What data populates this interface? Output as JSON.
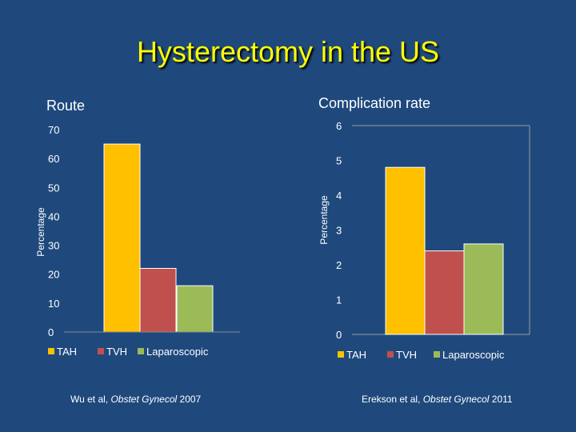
{
  "slide": {
    "title": "Hysterectomy in the US"
  },
  "chart_data": [
    {
      "type": "bar",
      "title": "Route",
      "xlabel": "",
      "ylabel": "Percentage",
      "ylim": [
        0,
        70
      ],
      "yticks": [
        0,
        10,
        20,
        30,
        40,
        50,
        60,
        70
      ],
      "grid": false,
      "legend": "bottom",
      "categories": [
        "TAH",
        "TVH",
        "Laparoscopic"
      ],
      "values": [
        65,
        22,
        16
      ],
      "colors": [
        "#ffc000",
        "#c0504d",
        "#9bbb59"
      ],
      "citation": {
        "authors": "Wu et al, ",
        "journal": "Obstet Gynecol",
        "year": " 2007"
      }
    },
    {
      "type": "bar",
      "title": "Complication rate",
      "xlabel": "",
      "ylabel": "Percentage",
      "ylim": [
        0,
        6
      ],
      "yticks": [
        0,
        1,
        2,
        3,
        4,
        5,
        6
      ],
      "grid": false,
      "legend": "bottom",
      "categories": [
        "TAH",
        "TVH",
        "Laparoscopic"
      ],
      "values": [
        4.8,
        2.4,
        2.6
      ],
      "colors": [
        "#ffc000",
        "#c0504d",
        "#9bbb59"
      ],
      "citation": {
        "authors": "Erekson et al, ",
        "journal": "Obstet Gynecol",
        "year": " 2011"
      }
    }
  ]
}
